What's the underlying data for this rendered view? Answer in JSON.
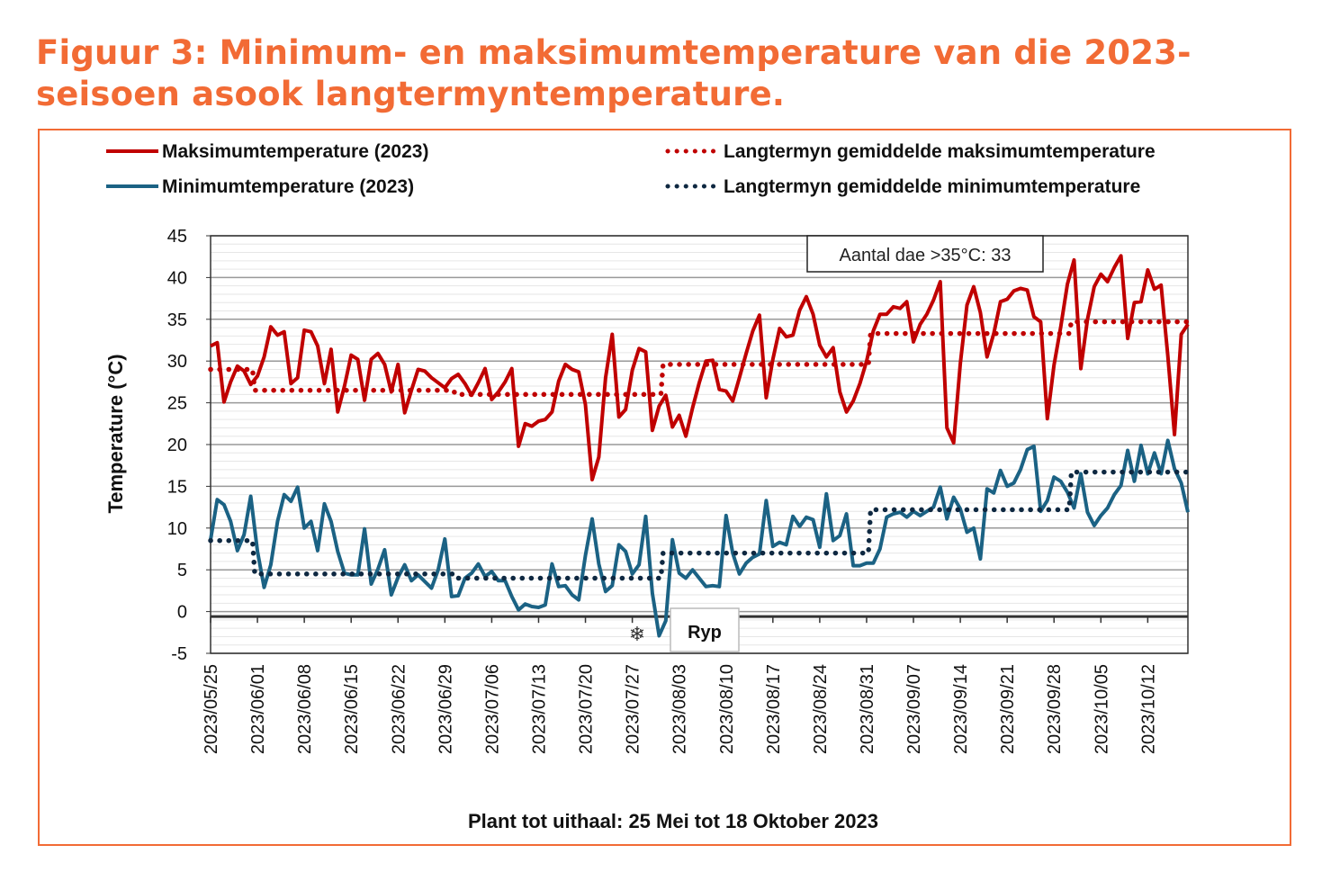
{
  "title": "Figuur 3: Minimum- en maksimumtemperature van die 2023-seisoen asook langtermyntemperature.",
  "colors": {
    "title": "#F26B35",
    "frame": "#F26B35",
    "max": "#C00000",
    "min": "#1B6284",
    "lt_max": "#C00000",
    "lt_min": "#0E2841"
  },
  "chart_data": {
    "type": "line",
    "xlabel": "Plant tot uithaal: 25 Mei tot 18 Oktober 2023",
    "ylabel": "Temperature (°C)",
    "ylim": [
      -5,
      45
    ],
    "yticks": [
      "45",
      "40",
      "35",
      "30",
      "25",
      "20",
      "15",
      "10",
      "5",
      "0",
      "-5"
    ],
    "xlim": [
      "2023-05-25",
      "2023-10-18"
    ],
    "xticks": [
      "2023/05/25",
      "2023/06/01",
      "2023/06/08",
      "2023/06/15",
      "2023/06/22",
      "2023/06/29",
      "2023/07/06",
      "2023/07/13",
      "2023/07/20",
      "2023/07/27",
      "2023/08/03",
      "2023/08/10",
      "2023/08/17",
      "2023/08/24",
      "2023/08/31",
      "2023/09/07",
      "2023/09/14",
      "2023/09/21",
      "2023/09/28",
      "2023/10/05",
      "2023/10/12"
    ],
    "grid": true,
    "legend_position": "top",
    "series": [
      {
        "name": "Maksimumtemperature (2023)",
        "style": "solid",
        "color": "#C00000",
        "values": [
          31.8,
          32.2,
          25.1,
          27.5,
          29.4,
          28.8,
          27.2,
          28.2,
          30.5,
          34.1,
          33.1,
          33.5,
          27.3,
          28.0,
          33.7,
          33.5,
          31.8,
          27.3,
          31.4,
          23.9,
          27.0,
          30.7,
          30.2,
          25.3,
          30.2,
          30.9,
          29.6,
          26.3,
          29.6,
          23.8,
          26.5,
          29.0,
          28.8,
          28.0,
          27.4,
          26.8,
          27.9,
          28.4,
          27.3,
          25.9,
          27.4,
          29.1,
          25.4,
          26.3,
          27.5,
          29.1,
          19.8,
          22.5,
          22.2,
          22.8,
          23.0,
          23.9,
          27.6,
          29.6,
          29.0,
          28.7,
          24.8,
          15.8,
          18.5,
          28.0,
          33.2,
          23.3,
          24.2,
          28.9,
          31.5,
          31.1,
          21.7,
          24.6,
          25.9,
          22.1,
          23.5,
          21.0,
          24.4,
          27.4,
          30.0,
          30.1,
          26.6,
          26.4,
          25.2,
          28.0,
          30.9,
          33.6,
          35.5,
          25.6,
          30.2,
          33.9,
          32.9,
          33.1,
          36.1,
          37.7,
          35.6,
          31.9,
          30.5,
          31.6,
          26.3,
          23.9,
          25.2,
          27.3,
          30.0,
          33.6,
          35.6,
          35.6,
          36.5,
          36.3,
          37.1,
          32.3,
          34.4,
          35.6,
          37.3,
          39.5,
          22.0,
          20.2,
          29.7,
          36.7,
          38.9,
          35.8,
          30.5,
          33.3,
          37.1,
          37.4,
          38.4,
          38.7,
          38.5,
          35.3,
          34.7,
          23.1,
          29.5,
          34.1,
          39.2,
          42.1,
          29.1,
          35.0,
          38.9,
          40.4,
          39.5,
          41.2,
          42.6,
          32.7,
          37.0,
          37.1,
          40.9,
          38.6,
          39.1,
          30.6,
          21.2,
          33.2,
          34.4
        ]
      },
      {
        "name": "Minimumtemperature (2023)",
        "style": "solid",
        "color": "#1B6284",
        "values": [
          8.6,
          13.4,
          12.8,
          10.8,
          7.3,
          9.2,
          13.8,
          7.2,
          2.9,
          5.6,
          10.8,
          14.0,
          13.2,
          14.9,
          10.0,
          10.8,
          7.3,
          12.9,
          10.8,
          7.2,
          4.6,
          4.4,
          4.4,
          9.9,
          3.3,
          5.1,
          7.4,
          2.0,
          4.1,
          5.6,
          3.7,
          4.4,
          3.6,
          2.8,
          5.0,
          8.7,
          1.8,
          1.9,
          4.0,
          4.6,
          5.7,
          4.2,
          4.8,
          3.7,
          3.7,
          1.8,
          0.2,
          0.9,
          0.6,
          0.5,
          0.8,
          5.7,
          3.0,
          3.1,
          2.0,
          1.4,
          6.7,
          11.1,
          5.7,
          2.4,
          3.1,
          8.0,
          7.2,
          4.5,
          5.6,
          11.4,
          2.2,
          -2.9,
          -1.1,
          8.6,
          4.6,
          4.0,
          5.0,
          4.0,
          3.0,
          3.1,
          3.0,
          11.5,
          7.0,
          4.5,
          5.8,
          6.5,
          6.9,
          13.3,
          7.8,
          8.3,
          8.0,
          11.4,
          10.2,
          11.3,
          11.0,
          7.7,
          14.1,
          8.5,
          9.1,
          11.7,
          5.5,
          5.5,
          5.8,
          5.8,
          7.5,
          11.3,
          11.7,
          11.9,
          11.3,
          12.0,
          11.5,
          12.0,
          12.5,
          14.9,
          11.1,
          13.7,
          12.3,
          9.5,
          10.0,
          6.3,
          14.7,
          14.2,
          16.9,
          15.0,
          15.4,
          17.0,
          19.4,
          19.8,
          12.0,
          13.3,
          16.1,
          15.6,
          14.3,
          12.4,
          16.5,
          11.9,
          10.3,
          11.5,
          12.4,
          14.0,
          15.1,
          19.3,
          15.6,
          19.9,
          16.5,
          19.0,
          16.5,
          20.5,
          17.1,
          15.4,
          11.9
        ]
      },
      {
        "name": "Langtermyn gemiddelde maksimumtemperature",
        "style": "dotted",
        "color": "#C00000",
        "steps": [
          {
            "from": "2023-05-25",
            "to": "2023-05-31",
            "value": 29.0
          },
          {
            "from": "2023-06-01",
            "to": "2023-06-30",
            "value": 26.5
          },
          {
            "from": "2023-07-01",
            "to": "2023-07-31",
            "value": 26.0
          },
          {
            "from": "2023-08-01",
            "to": "2023-08-31",
            "value": 29.6
          },
          {
            "from": "2023-09-01",
            "to": "2023-09-30",
            "value": 33.3
          },
          {
            "from": "2023-10-01",
            "to": "2023-10-18",
            "value": 34.7
          }
        ]
      },
      {
        "name": "Langtermyn gemiddelde minimumtemperature",
        "style": "dotted",
        "color": "#0E2841",
        "steps": [
          {
            "from": "2023-05-25",
            "to": "2023-05-31",
            "value": 8.5
          },
          {
            "from": "2023-06-01",
            "to": "2023-06-30",
            "value": 4.5
          },
          {
            "from": "2023-07-01",
            "to": "2023-07-31",
            "value": 4.0
          },
          {
            "from": "2023-08-01",
            "to": "2023-08-31",
            "value": 7.0
          },
          {
            "from": "2023-09-01",
            "to": "2023-09-30",
            "value": 12.2
          },
          {
            "from": "2023-10-01",
            "to": "2023-10-18",
            "value": 16.7
          }
        ]
      }
    ],
    "annotations": {
      "hot_days": "Aantal dae >35°C: 33",
      "frost": "Ryp",
      "frost_icon": "snowflake-icon"
    }
  }
}
